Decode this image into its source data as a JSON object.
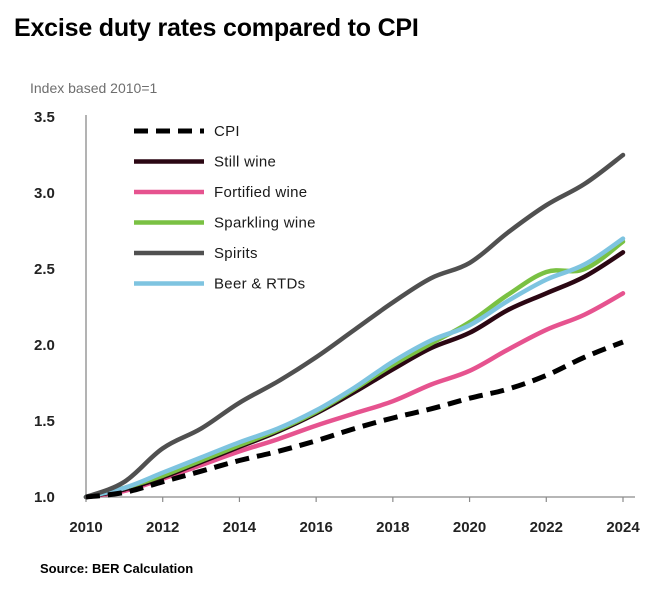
{
  "title": "Excise duty rates compared to CPI",
  "source": "Source: BER Calculation",
  "chart_data": {
    "type": "line",
    "title": "Excise duty rates compared to CPI",
    "ylabel": "Index based 2010=1",
    "xlabel": "",
    "xlim": [
      2010,
      2024
    ],
    "ylim": [
      1.0,
      3.5
    ],
    "x_ticks": [
      "2010",
      "2012",
      "2014",
      "2016",
      "2018",
      "2020",
      "2022",
      "2024"
    ],
    "y_ticks": [
      "1.0",
      "1.5",
      "2.0",
      "2.5",
      "3.0",
      "3.5"
    ],
    "grid": false,
    "legend_position": "top-left",
    "x": [
      2010,
      2011,
      2012,
      2013,
      2014,
      2015,
      2016,
      2017,
      2018,
      2019,
      2020,
      2021,
      2022,
      2023,
      2024
    ],
    "series": [
      {
        "name": "CPI",
        "color": "#000000",
        "dash": true,
        "values": [
          1.0,
          1.03,
          1.1,
          1.17,
          1.24,
          1.3,
          1.37,
          1.45,
          1.52,
          1.58,
          1.65,
          1.71,
          1.8,
          1.92,
          2.02
        ]
      },
      {
        "name": "Still wine",
        "color": "#2b0713",
        "dash": false,
        "values": [
          1.0,
          1.05,
          1.13,
          1.23,
          1.33,
          1.43,
          1.55,
          1.69,
          1.84,
          1.98,
          2.08,
          2.23,
          2.34,
          2.45,
          2.61
        ]
      },
      {
        "name": "Fortified wine",
        "color": "#e6538f",
        "dash": false,
        "values": [
          1.0,
          1.04,
          1.12,
          1.21,
          1.3,
          1.38,
          1.47,
          1.55,
          1.63,
          1.74,
          1.83,
          1.97,
          2.1,
          2.2,
          2.34
        ]
      },
      {
        "name": "Sparkling wine",
        "color": "#7ac143",
        "dash": false,
        "values": [
          1.0,
          1.06,
          1.14,
          1.24,
          1.34,
          1.44,
          1.56,
          1.71,
          1.87,
          2.01,
          2.15,
          2.33,
          2.48,
          2.5,
          2.68
        ]
      },
      {
        "name": "Spirits",
        "color": "#505050",
        "dash": false,
        "values": [
          1.0,
          1.1,
          1.32,
          1.45,
          1.62,
          1.76,
          1.92,
          2.1,
          2.28,
          2.44,
          2.54,
          2.74,
          2.92,
          3.06,
          3.25
        ]
      },
      {
        "name": "Beer & RTDs",
        "color": "#7ec4e0",
        "dash": false,
        "values": [
          1.0,
          1.06,
          1.16,
          1.26,
          1.36,
          1.45,
          1.57,
          1.72,
          1.89,
          2.03,
          2.13,
          2.29,
          2.43,
          2.53,
          2.7
        ]
      }
    ]
  }
}
